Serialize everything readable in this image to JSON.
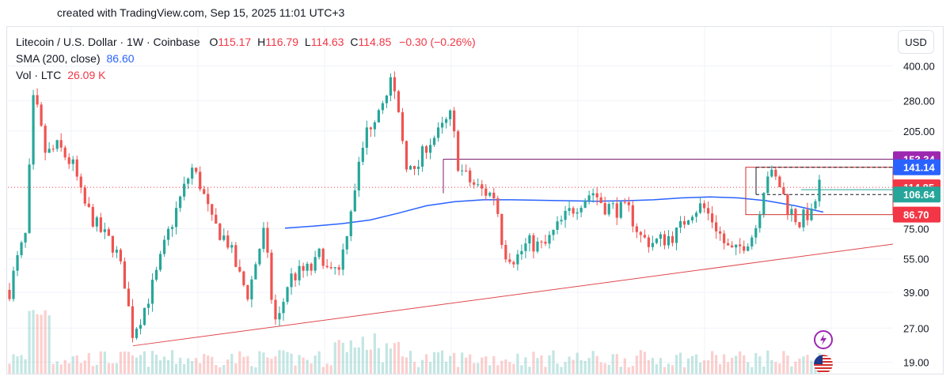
{
  "caption": "created with TradingView.com, Sep 15, 2025 11:01 UTC+3",
  "legend": {
    "symbol": "Litecoin / U.S. Dollar · 1W · Coinbase",
    "o_label": "O",
    "o_value": "115.17",
    "h_label": "H",
    "h_value": "116.79",
    "l_label": "L",
    "l_value": "114.63",
    "c_label": "C",
    "c_value": "114.85",
    "change": "−0.30 (−0.26%)",
    "sma_label": "SMA (200, close)",
    "sma_value": "86.60",
    "vol_label": "Vol · LTC",
    "vol_value": "26.09 K"
  },
  "currency": "USD",
  "colors": {
    "up": "#26a69a",
    "down": "#ef5350",
    "sma": "#2962ff",
    "trend": "#e0474c",
    "resistance": "#7b1f72"
  },
  "icons": [
    "lightning-icon",
    "us-flag-icon"
  ],
  "chart_data": {
    "type": "candlestick",
    "y_scale": "log",
    "y_ticks": [
      "400.00",
      "280.00",
      "205.00",
      "75.00",
      "55.00",
      "39.00",
      "27.00",
      "19.00"
    ],
    "price_labels": [
      {
        "value": "153.34",
        "color": "#9c27b0"
      },
      {
        "value": "141.14",
        "color": "#2962ff"
      },
      {
        "value": "114.85",
        "color": "#f23645"
      },
      {
        "value": "106.64",
        "color": "#26a69a"
      },
      {
        "value": "86.70",
        "color": "#f23645"
      }
    ],
    "last_price": 114.85,
    "sma": [
      75.5,
      77,
      79,
      82,
      88,
      95,
      99,
      101,
      101,
      100.5,
      100,
      99.5,
      100,
      101,
      103,
      104,
      103,
      100,
      95,
      89
    ],
    "trendline": [
      [
        22.5,
        0
      ],
      [
        64,
        1
      ]
    ],
    "resistance_level": 153.34,
    "box_top": 141.14,
    "box_bottom": 86.7,
    "green_level": 106.64,
    "dashed_levels": [
      141.14,
      106.64
    ]
  }
}
